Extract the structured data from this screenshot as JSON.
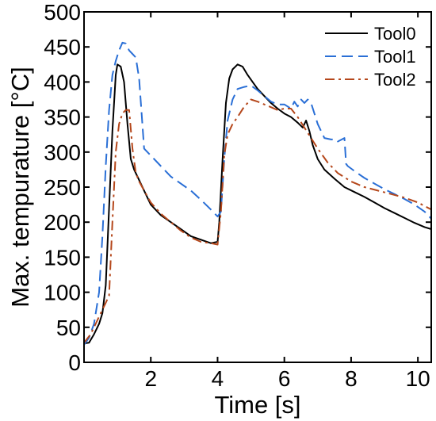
{
  "chart_data": {
    "type": "line",
    "title": "",
    "xlabel": "Time [s]",
    "ylabel": "Max. tempurature [°C]",
    "xlim": [
      0,
      10.4
    ],
    "ylim": [
      0,
      500
    ],
    "xticks": [
      2,
      4,
      6,
      8,
      10
    ],
    "yticks": [
      0,
      50,
      100,
      150,
      200,
      250,
      300,
      350,
      400,
      450,
      500
    ],
    "xtick_labels": [
      "2",
      "4",
      "6",
      "8",
      "10"
    ],
    "ytick_labels": [
      "0",
      "50",
      "100",
      "150",
      "200",
      "250",
      "300",
      "350",
      "400",
      "450",
      "500"
    ],
    "grid": false,
    "legend_position": "top-right",
    "series": [
      {
        "name": "Tool0",
        "color": "#000000",
        "dash": "solid",
        "x": [
          0.0,
          0.15,
          0.3,
          0.45,
          0.55,
          0.65,
          0.75,
          0.85,
          0.95,
          1.0,
          1.1,
          1.2,
          1.3,
          1.4,
          1.5,
          1.6,
          1.8,
          2.0,
          2.3,
          2.6,
          2.9,
          3.2,
          3.5,
          3.8,
          4.0,
          4.05,
          4.15,
          4.25,
          4.35,
          4.45,
          4.6,
          4.75,
          4.9,
          5.05,
          5.2,
          5.4,
          5.6,
          5.8,
          6.0,
          6.2,
          6.4,
          6.55,
          6.65,
          6.75,
          6.85,
          7.0,
          7.2,
          7.5,
          7.8,
          8.1,
          8.4,
          8.7,
          9.0,
          9.3,
          9.6,
          9.9,
          10.2,
          10.4
        ],
        "y": [
          27,
          28,
          40,
          55,
          70,
          110,
          220,
          330,
          410,
          425,
          422,
          400,
          340,
          290,
          275,
          265,
          245,
          225,
          210,
          200,
          190,
          180,
          175,
          170,
          172,
          200,
          290,
          370,
          405,
          418,
          425,
          422,
          410,
          400,
          390,
          380,
          370,
          362,
          355,
          350,
          342,
          335,
          345,
          330,
          310,
          290,
          275,
          262,
          250,
          243,
          236,
          228,
          220,
          213,
          206,
          199,
          193,
          190
        ]
      },
      {
        "name": "Tool1",
        "color": "#2a6fd6",
        "dash": "dashed",
        "x": [
          0.0,
          0.15,
          0.3,
          0.45,
          0.55,
          0.65,
          0.75,
          0.85,
          0.95,
          1.05,
          1.15,
          1.25,
          1.35,
          1.45,
          1.55,
          1.65,
          1.8,
          2.0,
          2.3,
          2.6,
          2.9,
          3.2,
          3.5,
          3.8,
          4.0,
          4.1,
          4.2,
          4.3,
          4.45,
          4.6,
          4.8,
          5.0,
          5.2,
          5.4,
          5.6,
          5.8,
          6.0,
          6.2,
          6.3,
          6.4,
          6.5,
          6.6,
          6.7,
          6.8,
          7.0,
          7.2,
          7.4,
          7.55,
          7.6,
          7.8,
          7.85,
          7.9,
          8.1,
          8.4,
          8.7,
          9.0,
          9.3,
          9.6,
          9.9,
          10.2,
          10.4
        ],
        "y": [
          25,
          35,
          55,
          100,
          180,
          280,
          360,
          410,
          430,
          445,
          456,
          455,
          445,
          440,
          435,
          405,
          305,
          295,
          280,
          265,
          255,
          245,
          232,
          218,
          208,
          215,
          290,
          345,
          375,
          390,
          393,
          395,
          388,
          380,
          372,
          368,
          368,
          362,
          372,
          365,
          375,
          370,
          375,
          370,
          340,
          320,
          318,
          318,
          315,
          320,
          283,
          280,
          273,
          263,
          255,
          247,
          240,
          233,
          225,
          215,
          205
        ]
      },
      {
        "name": "Tool2",
        "color": "#b5471b",
        "dash": "dashdot",
        "x": [
          0.0,
          0.2,
          0.4,
          0.6,
          0.75,
          0.85,
          0.95,
          1.05,
          1.15,
          1.25,
          1.35,
          1.45,
          1.55,
          1.65,
          1.8,
          2.0,
          2.3,
          2.6,
          2.9,
          3.2,
          3.5,
          3.8,
          4.0,
          4.1,
          4.2,
          4.3,
          4.45,
          4.6,
          4.8,
          5.0,
          5.2,
          5.4,
          5.6,
          5.8,
          6.0,
          6.2,
          6.4,
          6.6,
          6.8,
          7.0,
          7.3,
          7.6,
          8.0,
          8.4,
          8.8,
          9.2,
          9.6,
          10.0,
          10.4
        ],
        "y": [
          28,
          40,
          60,
          80,
          95,
          200,
          300,
          340,
          355,
          360,
          360,
          305,
          270,
          258,
          245,
          228,
          212,
          200,
          188,
          178,
          172,
          170,
          168,
          215,
          295,
          325,
          340,
          350,
          365,
          375,
          372,
          368,
          364,
          360,
          362,
          362,
          350,
          335,
          320,
          305,
          285,
          270,
          258,
          250,
          245,
          240,
          235,
          228,
          218
        ]
      }
    ]
  }
}
